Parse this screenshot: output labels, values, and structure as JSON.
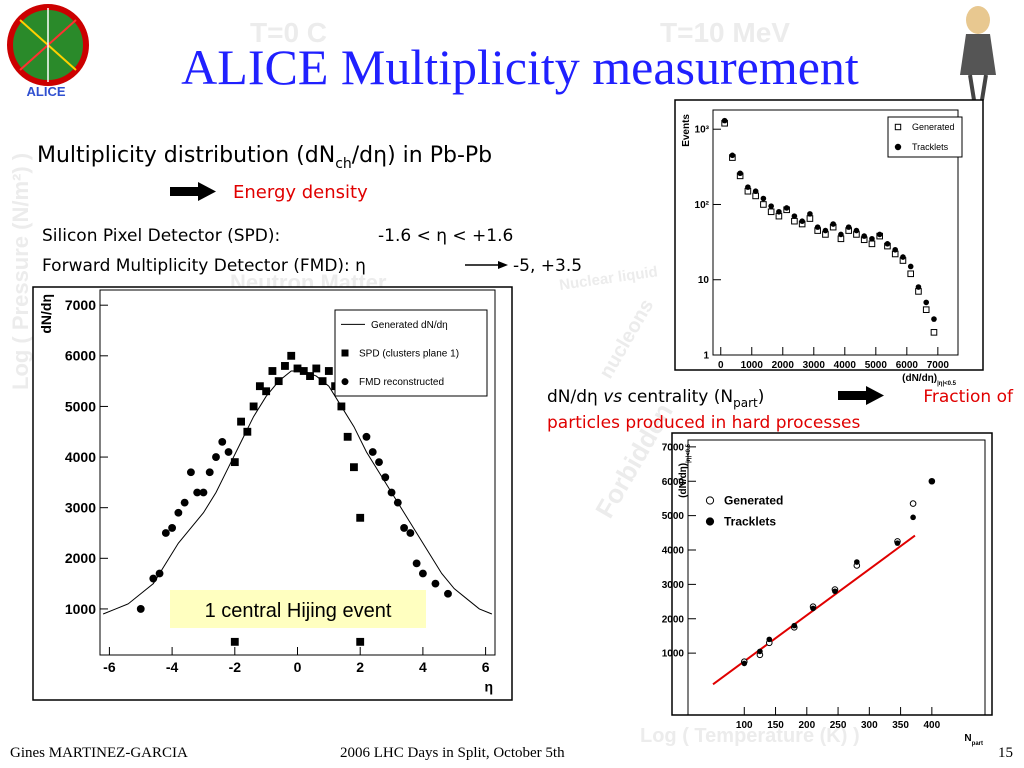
{
  "slide": {
    "title": "ALICE Multiplicity measurement",
    "logo_text": "ALICE",
    "heading": [
      "Multiplicity distribution (dN",
      "ch",
      "/dη) in Pb-Pb"
    ],
    "energy": "Energy density",
    "spd_label": "Silicon Pixel Detector (SPD):",
    "spd_range": "-1.6 < η < +1.6",
    "fmd_label": "Forward Multiplicity Detector (FMD): η",
    "fmd_range": "-5, +3.5",
    "centrality": [
      "dN/dη ",
      "vs",
      " centrality (N",
      "part",
      ")"
    ],
    "fraction": [
      "Fraction of",
      "particles produced in hard processes"
    ],
    "footer": {
      "author": "Gines MARTINEZ-GARCIA",
      "event": "2006 LHC Days in Split, October 5th",
      "page": "15"
    },
    "background": [
      "T=0 C",
      "T=10 MeV",
      "Log ( Pressure (N/m²) )",
      "Neutron Matter",
      "Nuclear liquid",
      "nucleons",
      "Forbidden",
      "Log ( Temperature (K) )"
    ]
  },
  "chart_data": [
    {
      "type": "scatter",
      "xlabel": "η",
      "ylabel": "dN/dη",
      "annotation": "1 central Hijing event",
      "xlim": [
        -6.3,
        6.3
      ],
      "ylim": [
        90,
        7300
      ],
      "xticks": [
        -6,
        -4,
        -2,
        0,
        2,
        4,
        6
      ],
      "yticks": [
        1000,
        2000,
        3000,
        4000,
        5000,
        6000,
        7000
      ],
      "series": [
        {
          "name": "Generated dN/dη",
          "marker": "line",
          "color": "#000000",
          "x": [
            -6.2,
            -5.8,
            -5.4,
            -5.0,
            -4.6,
            -4.2,
            -3.8,
            -3.4,
            -3.0,
            -2.6,
            -2.2,
            -1.8,
            -1.4,
            -1.0,
            -0.6,
            -0.2,
            0.2,
            0.6,
            1.0,
            1.4,
            1.8,
            2.2,
            2.6,
            3.0,
            3.4,
            3.8,
            4.2,
            4.6,
            5.0,
            5.4,
            5.8,
            6.2
          ],
          "values": [
            900,
            1000,
            1100,
            1300,
            1500,
            1900,
            2300,
            2600,
            2900,
            3300,
            3800,
            4300,
            4800,
            5200,
            5500,
            5700,
            5700,
            5600,
            5400,
            5000,
            4600,
            4100,
            3700,
            3300,
            2900,
            2500,
            2100,
            1700,
            1400,
            1200,
            1000,
            900
          ]
        },
        {
          "name": "SPD (clusters plane 1)",
          "marker": "square",
          "color": "#000000",
          "x": [
            -2.0,
            -1.8,
            -1.6,
            -1.4,
            -1.2,
            -1.0,
            -0.8,
            -0.6,
            -0.4,
            -0.2,
            0,
            0.2,
            0.4,
            0.6,
            0.8,
            1.0,
            1.2,
            1.4,
            1.6,
            1.8,
            2.0,
            -2.0,
            2.0
          ],
          "values": [
            3900,
            4700,
            4500,
            5000,
            5400,
            5300,
            5700,
            5500,
            5800,
            6000,
            5750,
            5700,
            5600,
            5750,
            5500,
            5700,
            5400,
            5000,
            4400,
            3800,
            2800,
            350,
            350
          ]
        },
        {
          "name": "FMD reconstructed",
          "marker": "circle",
          "color": "#000000",
          "x": [
            -5.0,
            -4.6,
            -4.4,
            -4.2,
            -4.0,
            -3.8,
            -3.6,
            -3.4,
            -3.2,
            -3.0,
            -2.8,
            -2.6,
            -2.4,
            -2.2,
            2.2,
            2.4,
            2.6,
            2.8,
            3.0,
            3.2,
            3.4,
            3.6,
            3.8,
            4.0,
            4.4,
            4.8
          ],
          "values": [
            1000,
            1600,
            1700,
            2500,
            2600,
            2900,
            3100,
            3700,
            3300,
            3300,
            3700,
            4000,
            4300,
            4100,
            4400,
            4100,
            3900,
            3600,
            3300,
            3100,
            2600,
            2500,
            1900,
            1700,
            1500,
            1300
          ]
        }
      ]
    },
    {
      "type": "scatter",
      "ylabel": "Events",
      "xlabel": [
        "(dN/dη)",
        "|η|<0.5"
      ],
      "ylog": true,
      "xlim": [
        -250,
        7650
      ],
      "ylim": [
        1,
        1800
      ],
      "xticks": [
        0,
        1000,
        2000,
        3000,
        4000,
        5000,
        6000,
        7000
      ],
      "yticks": [
        1,
        10,
        {
          "value": 100,
          "label": "10²"
        },
        {
          "value": 1000,
          "label": "10³"
        }
      ],
      "series": [
        {
          "name": "Generated",
          "marker": "open-square",
          "color": "#000000",
          "x": [
            125,
            375,
            625,
            875,
            1125,
            1375,
            1625,
            1875,
            2125,
            2375,
            2625,
            2875,
            3125,
            3375,
            3625,
            3875,
            4125,
            4375,
            4625,
            4875,
            5125,
            5375,
            5625,
            5875,
            6125,
            6375,
            6625,
            6875
          ],
          "values": [
            1200,
            420,
            240,
            150,
            130,
            100,
            80,
            70,
            85,
            60,
            55,
            65,
            45,
            40,
            50,
            35,
            45,
            40,
            34,
            30,
            38,
            28,
            22,
            18,
            12,
            7,
            4,
            2
          ]
        },
        {
          "name": "Tracklets",
          "marker": "circle",
          "color": "#000000",
          "x": [
            125,
            375,
            625,
            875,
            1125,
            1375,
            1625,
            1875,
            2125,
            2375,
            2625,
            2875,
            3125,
            3375,
            3625,
            3875,
            4125,
            4375,
            4625,
            4875,
            5125,
            5375,
            5625,
            5875,
            6125,
            6375,
            6625,
            6875
          ],
          "values": [
            1300,
            450,
            260,
            170,
            150,
            120,
            95,
            80,
            90,
            70,
            60,
            75,
            50,
            45,
            55,
            40,
            50,
            45,
            38,
            35,
            40,
            30,
            25,
            20,
            15,
            8,
            5,
            3
          ]
        }
      ]
    },
    {
      "type": "scatter",
      "ylabel": [
        "(dN/dη)",
        "|η|<0.5"
      ],
      "xlabel": [
        "N",
        "part"
      ],
      "xlim": [
        10,
        485
      ],
      "ylim": [
        -800,
        7200
      ],
      "xticks": [
        100,
        150,
        200,
        250,
        300,
        350,
        400
      ],
      "yticks": [
        1000,
        2000,
        3000,
        4000,
        5000,
        6000,
        7000
      ],
      "fit": {
        "color": "#e00000",
        "x": [
          50,
          373
        ],
        "values": [
          94,
          4420
        ]
      },
      "series": [
        {
          "name": "Generated",
          "marker": "open-circle",
          "color": "#000000",
          "x": [
            100,
            125,
            140,
            180,
            210,
            245,
            280,
            345,
            370,
            400
          ],
          "values": [
            750,
            950,
            1300,
            1750,
            2350,
            2850,
            3550,
            4250,
            5350,
            6000
          ]
        },
        {
          "name": "Tracklets",
          "marker": "circle",
          "color": "#000000",
          "x": [
            100,
            125,
            140,
            180,
            210,
            245,
            280,
            345,
            370,
            400
          ],
          "values": [
            700,
            1050,
            1400,
            1800,
            2300,
            2800,
            3650,
            4200,
            4950,
            6000
          ]
        }
      ]
    }
  ]
}
